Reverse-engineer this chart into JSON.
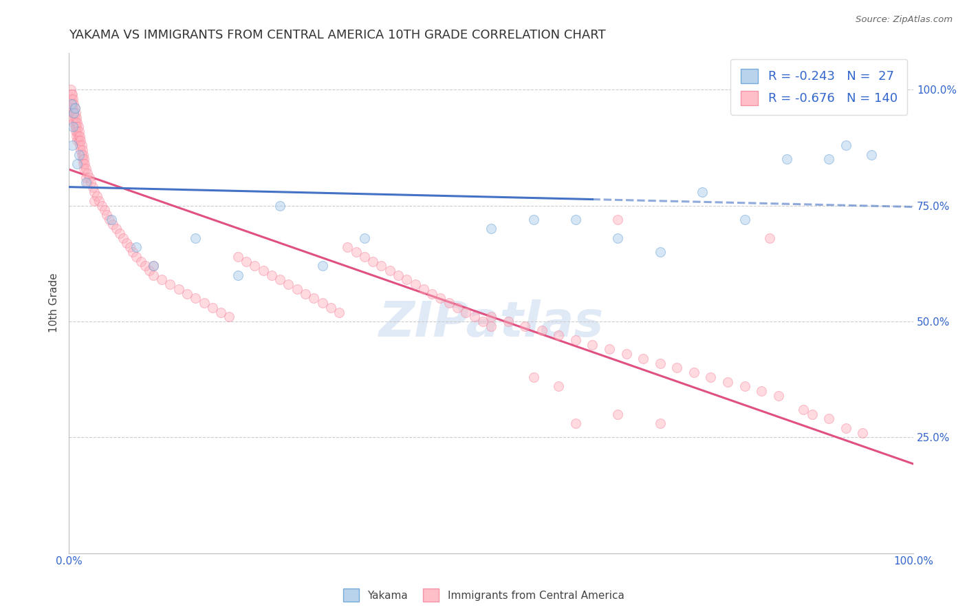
{
  "title": "YAKAMA VS IMMIGRANTS FROM CENTRAL AMERICA 10TH GRADE CORRELATION CHART",
  "source_text": "Source: ZipAtlas.com",
  "ylabel": "10th Grade",
  "xlim": [
    0.0,
    1.0
  ],
  "ylim": [
    0.0,
    1.08
  ],
  "xtick_positions": [
    0.0,
    1.0
  ],
  "xtick_labels": [
    "0.0%",
    "100.0%"
  ],
  "ytick_vals": [
    1.0,
    0.75,
    0.5,
    0.25
  ],
  "ytick_labels": [
    "100.0%",
    "75.0%",
    "50.0%",
    "25.0%"
  ],
  "watermark": "ZIPatlas",
  "blue_color": "#A8C8E8",
  "pink_color": "#FFB0BC",
  "blue_edge_color": "#5B9BD5",
  "pink_edge_color": "#F48098",
  "blue_line_color": "#4472C4",
  "pink_line_color": "#E05080",
  "blue_line_solid_end": 0.62,
  "blue_scatter": [
    [
      0.003,
      0.97
    ],
    [
      0.006,
      0.95
    ],
    [
      0.007,
      0.96
    ],
    [
      0.004,
      0.88
    ],
    [
      0.005,
      0.92
    ],
    [
      0.01,
      0.84
    ],
    [
      0.012,
      0.86
    ],
    [
      0.02,
      0.8
    ],
    [
      0.05,
      0.72
    ],
    [
      0.08,
      0.66
    ],
    [
      0.1,
      0.62
    ],
    [
      0.15,
      0.68
    ],
    [
      0.2,
      0.6
    ],
    [
      0.25,
      0.75
    ],
    [
      0.3,
      0.62
    ],
    [
      0.35,
      0.68
    ],
    [
      0.5,
      0.7
    ],
    [
      0.55,
      0.72
    ],
    [
      0.6,
      0.72
    ],
    [
      0.65,
      0.68
    ],
    [
      0.7,
      0.65
    ],
    [
      0.75,
      0.78
    ],
    [
      0.8,
      0.72
    ],
    [
      0.85,
      0.85
    ],
    [
      0.9,
      0.85
    ],
    [
      0.92,
      0.88
    ],
    [
      0.95,
      0.86
    ]
  ],
  "pink_scatter": [
    [
      0.002,
      1.0
    ],
    [
      0.003,
      0.99
    ],
    [
      0.003,
      0.98
    ],
    [
      0.003,
      0.96
    ],
    [
      0.004,
      0.99
    ],
    [
      0.004,
      0.97
    ],
    [
      0.004,
      0.95
    ],
    [
      0.005,
      0.98
    ],
    [
      0.005,
      0.96
    ],
    [
      0.005,
      0.94
    ],
    [
      0.006,
      0.97
    ],
    [
      0.006,
      0.95
    ],
    [
      0.006,
      0.93
    ],
    [
      0.007,
      0.96
    ],
    [
      0.007,
      0.94
    ],
    [
      0.007,
      0.92
    ],
    [
      0.008,
      0.95
    ],
    [
      0.008,
      0.93
    ],
    [
      0.008,
      0.91
    ],
    [
      0.009,
      0.94
    ],
    [
      0.009,
      0.92
    ],
    [
      0.009,
      0.9
    ],
    [
      0.01,
      0.93
    ],
    [
      0.01,
      0.91
    ],
    [
      0.01,
      0.89
    ],
    [
      0.011,
      0.92
    ],
    [
      0.011,
      0.9
    ],
    [
      0.012,
      0.91
    ],
    [
      0.012,
      0.89
    ],
    [
      0.013,
      0.9
    ],
    [
      0.013,
      0.88
    ],
    [
      0.014,
      0.89
    ],
    [
      0.014,
      0.87
    ],
    [
      0.015,
      0.88
    ],
    [
      0.015,
      0.86
    ],
    [
      0.016,
      0.87
    ],
    [
      0.016,
      0.85
    ],
    [
      0.017,
      0.86
    ],
    [
      0.017,
      0.84
    ],
    [
      0.018,
      0.85
    ],
    [
      0.018,
      0.83
    ],
    [
      0.019,
      0.84
    ],
    [
      0.02,
      0.83
    ],
    [
      0.02,
      0.81
    ],
    [
      0.022,
      0.82
    ],
    [
      0.022,
      0.8
    ],
    [
      0.024,
      0.81
    ],
    [
      0.026,
      0.8
    ],
    [
      0.028,
      0.79
    ],
    [
      0.03,
      0.78
    ],
    [
      0.03,
      0.76
    ],
    [
      0.033,
      0.77
    ],
    [
      0.036,
      0.76
    ],
    [
      0.039,
      0.75
    ],
    [
      0.042,
      0.74
    ],
    [
      0.045,
      0.73
    ],
    [
      0.048,
      0.72
    ],
    [
      0.052,
      0.71
    ],
    [
      0.056,
      0.7
    ],
    [
      0.06,
      0.69
    ],
    [
      0.064,
      0.68
    ],
    [
      0.068,
      0.67
    ],
    [
      0.072,
      0.66
    ],
    [
      0.076,
      0.65
    ],
    [
      0.08,
      0.64
    ],
    [
      0.085,
      0.63
    ],
    [
      0.09,
      0.62
    ],
    [
      0.095,
      0.61
    ],
    [
      0.1,
      0.6
    ],
    [
      0.1,
      0.62
    ],
    [
      0.11,
      0.59
    ],
    [
      0.12,
      0.58
    ],
    [
      0.13,
      0.57
    ],
    [
      0.14,
      0.56
    ],
    [
      0.15,
      0.55
    ],
    [
      0.16,
      0.54
    ],
    [
      0.17,
      0.53
    ],
    [
      0.18,
      0.52
    ],
    [
      0.19,
      0.51
    ],
    [
      0.2,
      0.64
    ],
    [
      0.21,
      0.63
    ],
    [
      0.22,
      0.62
    ],
    [
      0.23,
      0.61
    ],
    [
      0.24,
      0.6
    ],
    [
      0.25,
      0.59
    ],
    [
      0.26,
      0.58
    ],
    [
      0.27,
      0.57
    ],
    [
      0.28,
      0.56
    ],
    [
      0.29,
      0.55
    ],
    [
      0.3,
      0.54
    ],
    [
      0.31,
      0.53
    ],
    [
      0.32,
      0.52
    ],
    [
      0.33,
      0.66
    ],
    [
      0.34,
      0.65
    ],
    [
      0.35,
      0.64
    ],
    [
      0.36,
      0.63
    ],
    [
      0.37,
      0.62
    ],
    [
      0.38,
      0.61
    ],
    [
      0.39,
      0.6
    ],
    [
      0.4,
      0.59
    ],
    [
      0.41,
      0.58
    ],
    [
      0.42,
      0.57
    ],
    [
      0.43,
      0.56
    ],
    [
      0.44,
      0.55
    ],
    [
      0.45,
      0.54
    ],
    [
      0.46,
      0.53
    ],
    [
      0.47,
      0.52
    ],
    [
      0.48,
      0.51
    ],
    [
      0.49,
      0.5
    ],
    [
      0.5,
      0.49
    ],
    [
      0.5,
      0.51
    ],
    [
      0.52,
      0.5
    ],
    [
      0.54,
      0.49
    ],
    [
      0.56,
      0.48
    ],
    [
      0.58,
      0.47
    ],
    [
      0.6,
      0.46
    ],
    [
      0.62,
      0.45
    ],
    [
      0.64,
      0.44
    ],
    [
      0.65,
      0.72
    ],
    [
      0.66,
      0.43
    ],
    [
      0.68,
      0.42
    ],
    [
      0.7,
      0.41
    ],
    [
      0.72,
      0.4
    ],
    [
      0.74,
      0.39
    ],
    [
      0.76,
      0.38
    ],
    [
      0.78,
      0.37
    ],
    [
      0.8,
      0.36
    ],
    [
      0.82,
      0.35
    ],
    [
      0.83,
      0.68
    ],
    [
      0.84,
      0.34
    ],
    [
      0.87,
      0.31
    ],
    [
      0.88,
      0.3
    ],
    [
      0.9,
      0.29
    ],
    [
      0.92,
      0.27
    ],
    [
      0.94,
      0.26
    ],
    [
      0.6,
      0.28
    ],
    [
      0.65,
      0.3
    ],
    [
      0.7,
      0.28
    ],
    [
      0.55,
      0.38
    ],
    [
      0.58,
      0.36
    ]
  ],
  "grid_color": "#CCCCCC",
  "title_fontsize": 13,
  "axis_label_fontsize": 11,
  "legend_fontsize": 13,
  "dot_size": 100,
  "dot_alpha": 0.45,
  "line_width": 2.2
}
